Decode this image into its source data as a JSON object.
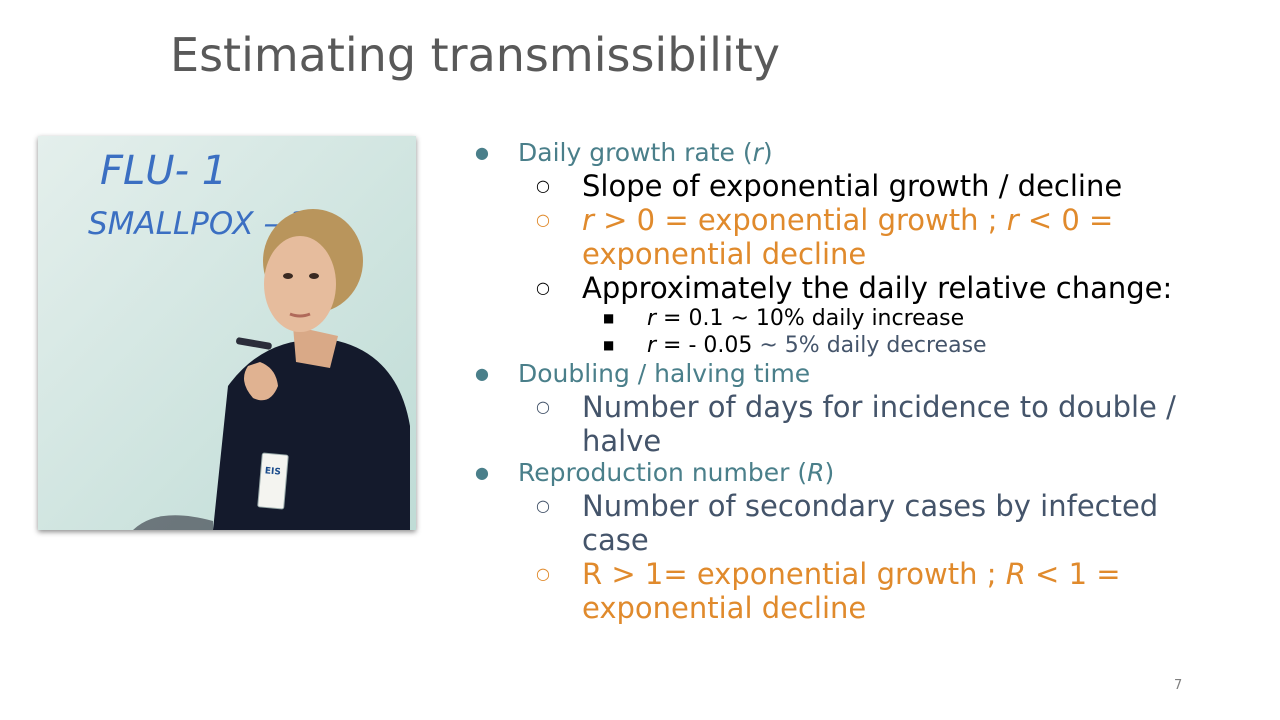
{
  "slide": {
    "title": "Estimating transmissibility",
    "page_number": "7"
  },
  "photo": {
    "whiteboard_text_1": "FLU- 1",
    "whiteboard_text_2": "SMALLPOX – 3",
    "badge_text": "EIS"
  },
  "bullets": {
    "growth": {
      "label": "Daily growth rate (",
      "var": "r",
      "close": ")",
      "sub1": "Slope of exponential growth / decline",
      "sub2_a": "r",
      "sub2_b": " > 0 = exponential growth ; ",
      "sub2_c": "r",
      "sub2_d": " < 0 = exponential decline",
      "sub3": "Approximately the daily relative change:",
      "ex1_var": "r",
      "ex1_text": " = 0.1 ~ 10% daily increase",
      "ex2_var": "r",
      "ex2_text": " = - 0.05",
      "ex2_tail": "  ~ 5% daily decrease"
    },
    "doubling": {
      "label": "Doubling / halving time",
      "sub1": "Number of days for incidence to double / halve"
    },
    "reproduction": {
      "label": "Reproduction number (",
      "var": "R",
      "close": ")",
      "sub1": "Number of secondary cases by infected case",
      "sub2_a": "R > 1= exponential growth ;  ",
      "sub2_b": "R",
      "sub2_c": " < 1 = exponential decline"
    }
  },
  "colors": {
    "title": "#595959",
    "level1": "#4a7f8a",
    "orange": "#e08a2c",
    "slate": "#44546a"
  }
}
